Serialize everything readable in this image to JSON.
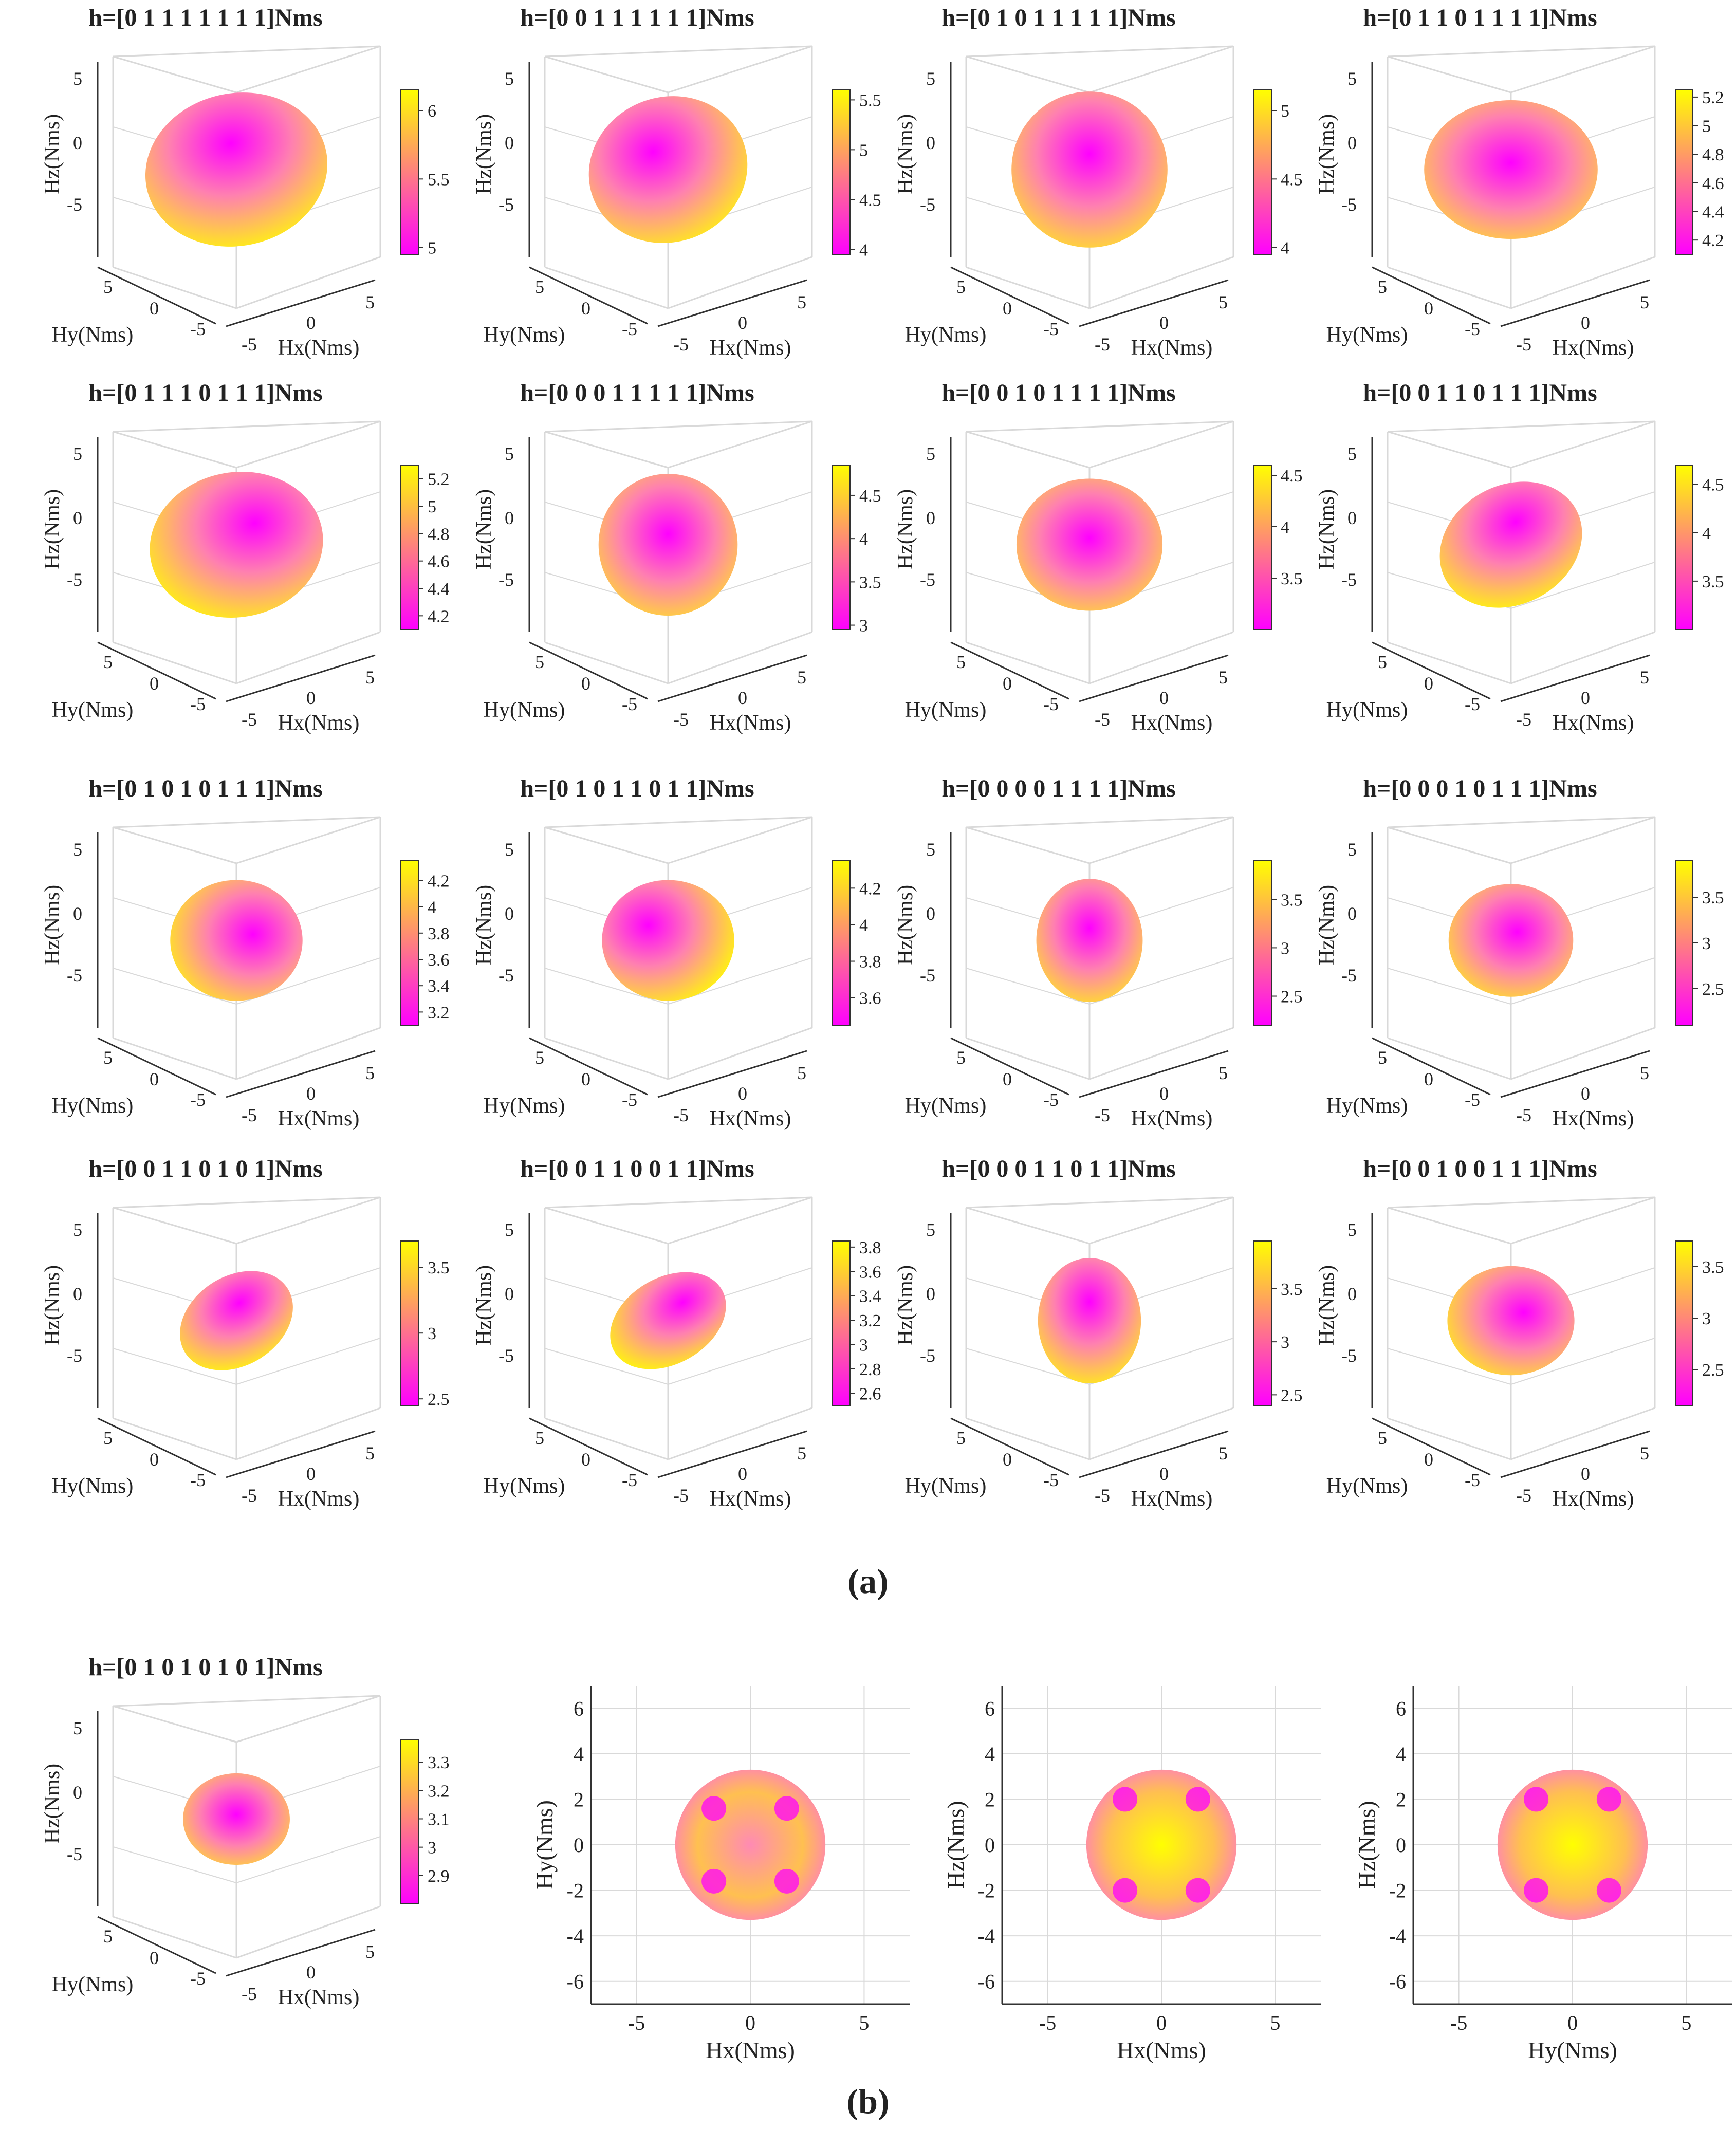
{
  "figure": {
    "panel_a_label": "(a)",
    "panel_b_label": "(b)"
  },
  "colors": {
    "colormap_low": "#ff00ff",
    "colormap_high": "#ffff00",
    "grid": "#d9d9d9",
    "axis": "#333333"
  },
  "chart_data": [
    {
      "type": "surface3d",
      "panel": "a",
      "title": "h=[0 1 1 1 1 1 1 1]Nms",
      "xlabel": "Hx(Nms)",
      "ylabel": "Hy(Nms)",
      "zlabel": "Hz(Nms)",
      "axis_ticks": [
        "-5",
        "0",
        "5"
      ],
      "colorbar_ticks": [
        "5",
        "5.5",
        "6"
      ],
      "colorbar_range": [
        4.95,
        6.15
      ],
      "shape": {
        "size": 1.0,
        "squash": 0.9,
        "tilt": -12,
        "stretch": 1.08,
        "hot_dx": 0.0,
        "hot_dy": -0.35
      }
    },
    {
      "type": "surface3d",
      "panel": "a",
      "title": "h=[0 0 1 1 1 1 1 1]Nms",
      "xlabel": "Hx(Nms)",
      "ylabel": "Hy(Nms)",
      "zlabel": "Hz(Nms)",
      "axis_ticks": [
        "-5",
        "0",
        "5"
      ],
      "colorbar_ticks": [
        "4",
        "4.5",
        "5",
        "5.5"
      ],
      "colorbar_range": [
        3.95,
        5.6
      ],
      "shape": {
        "size": 0.9,
        "squash": 0.95,
        "tilt": -20,
        "stretch": 1.05,
        "hot_dx": -0.1,
        "hot_dy": -0.3
      }
    },
    {
      "type": "surface3d",
      "panel": "a",
      "title": "h=[0 1 0 1 1 1 1 1]Nms",
      "xlabel": "Hx(Nms)",
      "ylabel": "Hy(Nms)",
      "zlabel": "Hz(Nms)",
      "axis_ticks": [
        "-5",
        "0",
        "5"
      ],
      "colorbar_ticks": [
        "4",
        "4.5",
        "5"
      ],
      "colorbar_range": [
        3.95,
        5.15
      ],
      "shape": {
        "size": 0.92,
        "squash": 1.0,
        "tilt": 0,
        "stretch": 1.0,
        "hot_dx": 0.0,
        "hot_dy": -0.2
      }
    },
    {
      "type": "surface3d",
      "panel": "a",
      "title": "h=[0 1 1 0 1 1 1 1]Nms",
      "xlabel": "Hx(Nms)",
      "ylabel": "Hy(Nms)",
      "zlabel": "Hz(Nms)",
      "axis_ticks": [
        "-5",
        "0",
        "5"
      ],
      "colorbar_ticks": [
        "4.2",
        "4.4",
        "4.6",
        "4.8",
        "5",
        "5.2"
      ],
      "colorbar_range": [
        4.1,
        5.25
      ],
      "shape": {
        "size": 0.93,
        "squash": 0.88,
        "tilt": 0,
        "stretch": 1.1,
        "hot_dx": 0.0,
        "hot_dy": -0.1
      }
    },
    {
      "type": "surface3d",
      "panel": "a",
      "title": "h=[0 1 1 1 0 1 1 1]Nms",
      "xlabel": "Hx(Nms)",
      "ylabel": "Hy(Nms)",
      "zlabel": "Hz(Nms)",
      "axis_ticks": [
        "-5",
        "0",
        "5"
      ],
      "colorbar_ticks": [
        "4.2",
        "4.4",
        "4.6",
        "4.8",
        "5",
        "5.2"
      ],
      "colorbar_range": [
        4.1,
        5.3
      ],
      "shape": {
        "size": 0.95,
        "squash": 0.9,
        "tilt": -10,
        "stretch": 1.08,
        "hot_dx": 0.25,
        "hot_dy": -0.25
      }
    },
    {
      "type": "surface3d",
      "panel": "a",
      "title": "h=[0 0 0 1 1 1 1 1]Nms",
      "xlabel": "Hx(Nms)",
      "ylabel": "Hy(Nms)",
      "zlabel": "Hz(Nms)",
      "axis_ticks": [
        "-5",
        "0",
        "5"
      ],
      "colorbar_ticks": [
        "3",
        "3.5",
        "4",
        "4.5"
      ],
      "colorbar_range": [
        2.95,
        4.85
      ],
      "shape": {
        "size": 0.82,
        "squash": 1.02,
        "tilt": 0,
        "stretch": 1.0,
        "hot_dx": 0.0,
        "hot_dy": -0.15
      }
    },
    {
      "type": "surface3d",
      "panel": "a",
      "title": "h=[0 0 1 0 1 1 1 1]Nms",
      "xlabel": "Hx(Nms)",
      "ylabel": "Hy(Nms)",
      "zlabel": "Hz(Nms)",
      "axis_ticks": [
        "-5",
        "0",
        "5"
      ],
      "colorbar_ticks": [
        "3.5",
        "4",
        "4.5"
      ],
      "colorbar_range": [
        3.0,
        4.6
      ],
      "shape": {
        "size": 0.82,
        "squash": 0.95,
        "tilt": 0,
        "stretch": 1.05,
        "hot_dx": 0.0,
        "hot_dy": -0.1
      }
    },
    {
      "type": "surface3d",
      "panel": "a",
      "title": "h=[0 0 1 1 0 1 1 1]Nms",
      "xlabel": "Hx(Nms)",
      "ylabel": "Hy(Nms)",
      "zlabel": "Hz(Nms)",
      "axis_ticks": [
        "-5",
        "0",
        "5"
      ],
      "colorbar_ticks": [
        "3.5",
        "4",
        "4.5"
      ],
      "colorbar_range": [
        3.0,
        4.7
      ],
      "shape": {
        "size": 0.78,
        "squash": 0.9,
        "tilt": -28,
        "stretch": 1.12,
        "hot_dx": 0.2,
        "hot_dy": -0.3
      }
    },
    {
      "type": "surface3d",
      "panel": "a",
      "title": "h=[0 1 0 1 0 1 1 1]Nms",
      "xlabel": "Hx(Nms)",
      "ylabel": "Hy(Nms)",
      "zlabel": "Hz(Nms)",
      "axis_ticks": [
        "-5",
        "0",
        "5"
      ],
      "colorbar_ticks": [
        "3.2",
        "3.4",
        "3.6",
        "3.8",
        "4",
        "4.2"
      ],
      "colorbar_range": [
        3.1,
        4.35
      ],
      "shape": {
        "size": 0.75,
        "squash": 0.95,
        "tilt": 0,
        "stretch": 1.04,
        "hot_dx": 0.25,
        "hot_dy": -0.1
      }
    },
    {
      "type": "surface3d",
      "panel": "a",
      "title": "h=[0 1 0 1 1 0 1 1]Nms",
      "xlabel": "Hx(Nms)",
      "ylabel": "Hy(Nms)",
      "zlabel": "Hz(Nms)",
      "axis_ticks": [
        "-5",
        "0",
        "5"
      ],
      "colorbar_ticks": [
        "3.6",
        "3.8",
        "4",
        "4.2"
      ],
      "colorbar_range": [
        3.45,
        4.35
      ],
      "shape": {
        "size": 0.75,
        "squash": 0.95,
        "tilt": 0,
        "stretch": 1.04,
        "hot_dx": -0.3,
        "hot_dy": -0.25
      }
    },
    {
      "type": "surface3d",
      "panel": "a",
      "title": "h=[0 0 0 0 1 1 1 1]Nms",
      "xlabel": "Hx(Nms)",
      "ylabel": "Hy(Nms)",
      "zlabel": "Hz(Nms)",
      "axis_ticks": [
        "-5",
        "0",
        "5"
      ],
      "colorbar_ticks": [
        "2.5",
        "3",
        "3.5"
      ],
      "colorbar_range": [
        2.2,
        3.9
      ],
      "shape": {
        "size": 0.66,
        "squash": 1.1,
        "tilt": 0,
        "stretch": 0.95,
        "hot_dx": 0.0,
        "hot_dy": -0.2
      }
    },
    {
      "type": "surface3d",
      "panel": "a",
      "title": "h=[0 0 0 1 0 1 1 1]Nms",
      "xlabel": "Hx(Nms)",
      "ylabel": "Hy(Nms)",
      "zlabel": "Hz(Nms)",
      "axis_ticks": [
        "-5",
        "0",
        "5"
      ],
      "colorbar_ticks": [
        "2.5",
        "3",
        "3.5"
      ],
      "colorbar_range": [
        2.1,
        3.9
      ],
      "shape": {
        "size": 0.7,
        "squash": 0.95,
        "tilt": 0,
        "stretch": 1.05,
        "hot_dx": 0.1,
        "hot_dy": -0.15
      }
    },
    {
      "type": "surface3d",
      "panel": "a",
      "title": "h=[0 0 1 1 0 1 0 1]Nms",
      "xlabel": "Hx(Nms)",
      "ylabel": "Hy(Nms)",
      "zlabel": "Hz(Nms)",
      "axis_ticks": [
        "-5",
        "0",
        "5"
      ],
      "colorbar_ticks": [
        "2.5",
        "3",
        "3.5"
      ],
      "colorbar_range": [
        2.45,
        3.7
      ],
      "shape": {
        "size": 0.62,
        "squash": 0.85,
        "tilt": -32,
        "stretch": 1.15,
        "hot_dx": 0.2,
        "hot_dy": -0.3
      }
    },
    {
      "type": "surface3d",
      "panel": "a",
      "title": "h=[0 0 1 1 0 0 1 1]Nms",
      "xlabel": "Hx(Nms)",
      "ylabel": "Hy(Nms)",
      "zlabel": "Hz(Nms)",
      "axis_ticks": [
        "-5",
        "0",
        "5"
      ],
      "colorbar_ticks": [
        "2.6",
        "2.8",
        "3",
        "3.2",
        "3.4",
        "3.6",
        "3.8"
      ],
      "colorbar_range": [
        2.5,
        3.85
      ],
      "shape": {
        "size": 0.62,
        "squash": 0.82,
        "tilt": -30,
        "stretch": 1.18,
        "hot_dx": 0.35,
        "hot_dy": -0.2
      }
    },
    {
      "type": "surface3d",
      "panel": "a",
      "title": "h=[0 0 0 1 1 0 1 1]Nms",
      "xlabel": "Hx(Nms)",
      "ylabel": "Hy(Nms)",
      "zlabel": "Hz(Nms)",
      "axis_ticks": [
        "-5",
        "0",
        "5"
      ],
      "colorbar_ticks": [
        "2.5",
        "3",
        "3.5"
      ],
      "colorbar_range": [
        2.4,
        3.95
      ],
      "shape": {
        "size": 0.66,
        "squash": 1.12,
        "tilt": 0,
        "stretch": 0.92,
        "hot_dx": 0.0,
        "hot_dy": -0.3
      }
    },
    {
      "type": "surface3d",
      "panel": "a",
      "title": "h=[0 0 1 0 0 1 1 1]Nms",
      "xlabel": "Hx(Nms)",
      "ylabel": "Hy(Nms)",
      "zlabel": "Hz(Nms)",
      "axis_ticks": [
        "-5",
        "0",
        "5"
      ],
      "colorbar_ticks": [
        "2.5",
        "3",
        "3.5"
      ],
      "colorbar_range": [
        2.15,
        3.75
      ],
      "shape": {
        "size": 0.7,
        "squash": 0.92,
        "tilt": 0,
        "stretch": 1.07,
        "hot_dx": 0.2,
        "hot_dy": -0.15
      }
    },
    {
      "type": "surface3d",
      "panel": "b",
      "title": "h=[0 1 0 1 0 1 0 1]Nms",
      "xlabel": "Hx(Nms)",
      "ylabel": "Hy(Nms)",
      "zlabel": "Hz(Nms)",
      "axis_ticks": [
        "-5",
        "0",
        "5"
      ],
      "colorbar_ticks": [
        "2.9",
        "3",
        "3.1",
        "3.2",
        "3.3"
      ],
      "colorbar_range": [
        2.8,
        3.38
      ],
      "shape": {
        "size": 0.6,
        "squash": 0.9,
        "tilt": 0,
        "stretch": 1.05,
        "hot_dx": 0.0,
        "hot_dy": -0.1
      }
    },
    {
      "type": "projection2d",
      "panel": "b",
      "xlabel": "Hx(Nms)",
      "ylabel": "Hy(Nms)",
      "xticks": [
        "-5",
        "0",
        "5"
      ],
      "yticks": [
        "-6",
        "-4",
        "-2",
        "0",
        "2",
        "4",
        "6"
      ],
      "xlim": [
        -7,
        7
      ],
      "ylim": [
        -7,
        7
      ],
      "radius": 3.3,
      "center_color": "#ff8ab4",
      "spots": [
        [
          -1.6,
          1.6
        ],
        [
          1.6,
          1.6
        ],
        [
          -1.6,
          -1.6
        ],
        [
          1.6,
          -1.6
        ]
      ],
      "spot_color": "#ff00ff"
    },
    {
      "type": "projection2d",
      "panel": "b",
      "xlabel": "Hx(Nms)",
      "ylabel": "Hz(Nms)",
      "xticks": [
        "-5",
        "0",
        "5"
      ],
      "yticks": [
        "-6",
        "-4",
        "-2",
        "0",
        "2",
        "4",
        "6"
      ],
      "xlim": [
        -7,
        7
      ],
      "ylim": [
        -7,
        7
      ],
      "radius": 3.3,
      "center_color": "#ffff00",
      "spots": [
        [
          -1.6,
          2.0
        ],
        [
          1.6,
          2.0
        ],
        [
          -1.6,
          -2.0
        ],
        [
          1.6,
          -2.0
        ]
      ],
      "spot_color": "#ff00ff"
    },
    {
      "type": "projection2d",
      "panel": "b",
      "xlabel": "Hy(Nms)",
      "ylabel": "Hz(Nms)",
      "xticks": [
        "-5",
        "0",
        "5"
      ],
      "yticks": [
        "-6",
        "-4",
        "-2",
        "0",
        "2",
        "4",
        "6"
      ],
      "xlim": [
        -7,
        7
      ],
      "ylim": [
        -7,
        7
      ],
      "radius": 3.3,
      "center_color": "#ffff00",
      "spots": [
        [
          -1.6,
          2.0
        ],
        [
          1.6,
          2.0
        ],
        [
          -1.6,
          -2.0
        ],
        [
          1.6,
          -2.0
        ]
      ],
      "spot_color": "#ff00ff"
    }
  ]
}
